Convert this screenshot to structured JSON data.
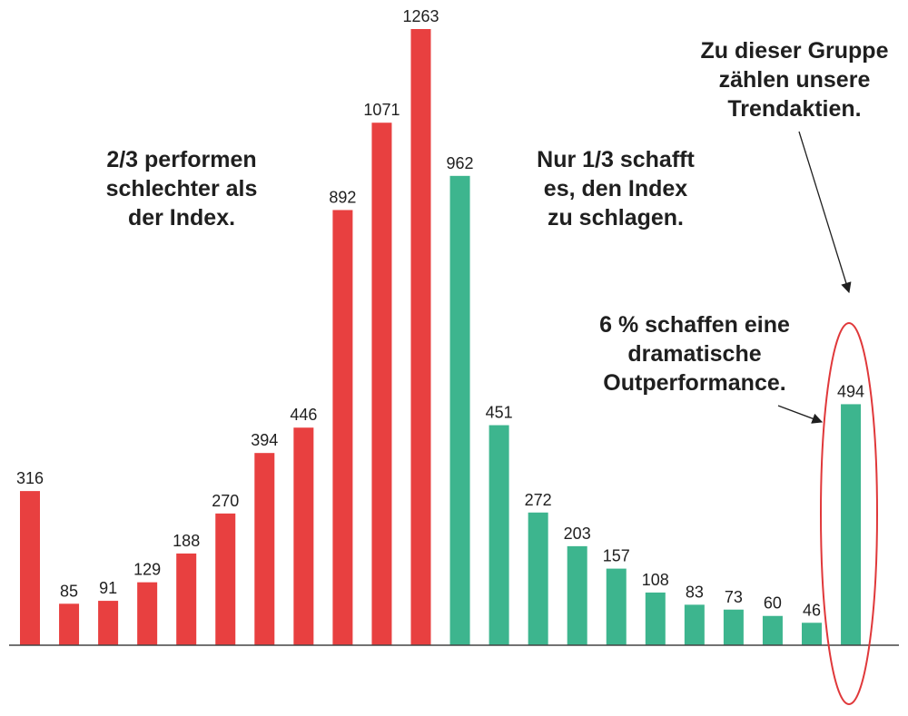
{
  "chart_data": {
    "type": "bar",
    "values": [
      316,
      85,
      91,
      129,
      188,
      270,
      394,
      446,
      892,
      1071,
      1263,
      962,
      451,
      272,
      203,
      157,
      108,
      83,
      73,
      60,
      46,
      494
    ],
    "value_labels": [
      "316",
      "85",
      "91",
      "129",
      "188",
      "270",
      "394",
      "446",
      "892",
      "1071",
      "1263",
      "962",
      "451",
      "272",
      "203",
      "157",
      "108",
      "83",
      "73",
      "60",
      "46",
      "494"
    ],
    "ylim": [
      0,
      1263
    ],
    "grid": false,
    "colors": {
      "underperform": "#e84040",
      "outperform": "#3db58e",
      "highlight_ellipse": "#e0383a",
      "axis": "#444444",
      "text": "#1f1f1f"
    },
    "series_split_index": 11,
    "annotations": {
      "left_group": [
        "2/3 performen",
        "schlechter als",
        "der Index."
      ],
      "right_group": [
        "Nur 1/3 schafft",
        "es, den Index",
        "zu schlagen."
      ],
      "trend_stocks": [
        "Zu dieser Gruppe",
        "zählen unsere",
        "Trendaktien."
      ],
      "outperformance": [
        "6 % schaffen eine",
        "dramatische",
        "Outperformance."
      ]
    }
  }
}
